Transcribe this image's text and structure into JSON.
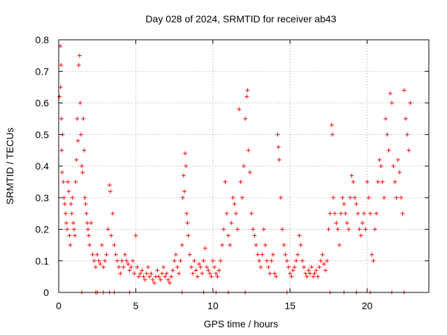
{
  "chart_data": {
    "type": "scatter",
    "title": "Day 028 of 2024, SRMTID for receiver ab43",
    "xlabel": "GPS time / hours",
    "ylabel": "SRMTID / TECUs",
    "xlim": [
      0,
      24
    ],
    "ylim": [
      0,
      0.8
    ],
    "xticks": [
      0,
      5,
      10,
      15,
      20
    ],
    "yticks": [
      0,
      0.1,
      0.2,
      0.3,
      0.4,
      0.5,
      0.6,
      0.7,
      0.8
    ],
    "xtick_labels": [
      "0",
      "5",
      "10",
      "15",
      "20"
    ],
    "ytick_labels": [
      "0",
      "0.1",
      "0.2",
      "0.3",
      "0.4",
      "0.5",
      "0.6",
      "0.7",
      "0.8"
    ],
    "grid": true,
    "marker": "+",
    "color": "#ff0000",
    "series": [
      {
        "name": "SRMTID",
        "points": [
          [
            0.05,
            0.62
          ],
          [
            0.1,
            0.78
          ],
          [
            0.12,
            0.65
          ],
          [
            0.15,
            0.72
          ],
          [
            0.18,
            0.55
          ],
          [
            0.2,
            0.45
          ],
          [
            0.22,
            0.38
          ],
          [
            0.25,
            0.5
          ],
          [
            0.3,
            0.35
          ],
          [
            0.35,
            0.3
          ],
          [
            0.4,
            0.28
          ],
          [
            0.45,
            0.25
          ],
          [
            0.5,
            0.22
          ],
          [
            0.55,
            0.2
          ],
          [
            0.6,
            0.35
          ],
          [
            0.65,
            0.32
          ],
          [
            0.7,
            0.18
          ],
          [
            0.75,
            0.15
          ],
          [
            0.8,
            0.28
          ],
          [
            0.85,
            0.25
          ],
          [
            0.9,
            0.3
          ],
          [
            0.95,
            0.22
          ],
          [
            1.0,
            0.2
          ],
          [
            1.05,
            0.18
          ],
          [
            1.1,
            0.35
          ],
          [
            1.15,
            0.42
          ],
          [
            1.2,
            0.55
          ],
          [
            1.25,
            0.48
          ],
          [
            1.3,
            0.72
          ],
          [
            1.35,
            0.75
          ],
          [
            1.4,
            0.6
          ],
          [
            1.45,
            0.5
          ],
          [
            1.5,
            0.4
          ],
          [
            1.55,
            0.38
          ],
          [
            1.6,
            0.55
          ],
          [
            1.65,
            0.45
          ],
          [
            1.7,
            0.3
          ],
          [
            1.75,
            0.28
          ],
          [
            1.8,
            0.25
          ],
          [
            1.85,
            0.22
          ],
          [
            1.9,
            0.2
          ],
          [
            1.95,
            0.18
          ],
          [
            2.0,
            0.15
          ],
          [
            2.1,
            0.22
          ],
          [
            2.2,
            0.12
          ],
          [
            2.3,
            0.1
          ],
          [
            2.4,
            0.08
          ],
          [
            2.5,
            0.12
          ],
          [
            2.6,
            0.1
          ],
          [
            2.7,
            0.09
          ],
          [
            2.8,
            0.15
          ],
          [
            2.9,
            0.08
          ],
          [
            3.0,
            0.1
          ],
          [
            3.1,
            0.12
          ],
          [
            3.2,
            0.2
          ],
          [
            3.3,
            0.34
          ],
          [
            3.35,
            0.32
          ],
          [
            3.4,
            0.18
          ],
          [
            3.5,
            0.25
          ],
          [
            3.6,
            0.15
          ],
          [
            3.7,
            0.12
          ],
          [
            3.8,
            0.1
          ],
          [
            3.9,
            0.08
          ],
          [
            4.0,
            0.06
          ],
          [
            4.1,
            0.1
          ],
          [
            4.2,
            0.08
          ],
          [
            4.3,
            0.12
          ],
          [
            4.4,
            0.1
          ],
          [
            4.5,
            0.09
          ],
          [
            4.6,
            0.07
          ],
          [
            4.7,
            0.08
          ],
          [
            4.8,
            0.1
          ],
          [
            4.9,
            0.06
          ],
          [
            5.0,
            0.18
          ],
          [
            5.1,
            0.08
          ],
          [
            5.2,
            0.05
          ],
          [
            5.3,
            0.06
          ],
          [
            5.4,
            0.07
          ],
          [
            5.5,
            0.05
          ],
          [
            5.6,
            0.04
          ],
          [
            5.7,
            0.06
          ],
          [
            5.8,
            0.08
          ],
          [
            5.9,
            0.05
          ],
          [
            6.0,
            0.06
          ],
          [
            6.1,
            0.04
          ],
          [
            6.2,
            0.03
          ],
          [
            6.3,
            0.05
          ],
          [
            6.4,
            0.07
          ],
          [
            6.5,
            0.05
          ],
          [
            6.6,
            0.04
          ],
          [
            6.7,
            0.06
          ],
          [
            6.8,
            0.08
          ],
          [
            6.9,
            0.05
          ],
          [
            7.0,
            0.06
          ],
          [
            7.1,
            0.04
          ],
          [
            7.2,
            0.03
          ],
          [
            7.3,
            0.05
          ],
          [
            7.4,
            0.07
          ],
          [
            7.5,
            0.1
          ],
          [
            7.6,
            0.12
          ],
          [
            7.7,
            0.08
          ],
          [
            7.8,
            0.06
          ],
          [
            7.9,
            0.1
          ],
          [
            8.0,
            0.15
          ],
          [
            8.05,
            0.3
          ],
          [
            8.1,
            0.37
          ],
          [
            8.15,
            0.32
          ],
          [
            8.2,
            0.44
          ],
          [
            8.25,
            0.4
          ],
          [
            8.3,
            0.25
          ],
          [
            8.35,
            0.22
          ],
          [
            8.4,
            0.18
          ],
          [
            8.5,
            0.12
          ],
          [
            8.6,
            0.08
          ],
          [
            8.7,
            0.06
          ],
          [
            8.8,
            0.1
          ],
          [
            8.9,
            0.07
          ],
          [
            9.0,
            0.05
          ],
          [
            9.1,
            0.09
          ],
          [
            9.2,
            0.08
          ],
          [
            9.3,
            0.06
          ],
          [
            9.4,
            0.1
          ],
          [
            9.5,
            0.14
          ],
          [
            9.6,
            0.08
          ],
          [
            9.7,
            0.07
          ],
          [
            9.8,
            0.06
          ],
          [
            9.9,
            0.05
          ],
          [
            10.0,
            0.1
          ],
          [
            10.1,
            0.08
          ],
          [
            10.2,
            0.06
          ],
          [
            10.3,
            0.05
          ],
          [
            10.4,
            0.07
          ],
          [
            10.5,
            0.1
          ],
          [
            10.6,
            0.15
          ],
          [
            10.7,
            0.2
          ],
          [
            10.8,
            0.35
          ],
          [
            10.9,
            0.25
          ],
          [
            11.0,
            0.18
          ],
          [
            11.1,
            0.15
          ],
          [
            11.2,
            0.22
          ],
          [
            11.3,
            0.3
          ],
          [
            11.4,
            0.28
          ],
          [
            11.5,
            0.25
          ],
          [
            11.6,
            0.2
          ],
          [
            11.7,
            0.58
          ],
          [
            11.8,
            0.35
          ],
          [
            11.9,
            0.3
          ],
          [
            12.0,
            0.4
          ],
          [
            12.1,
            0.55
          ],
          [
            12.2,
            0.62
          ],
          [
            12.25,
            0.64
          ],
          [
            12.3,
            0.45
          ],
          [
            12.4,
            0.38
          ],
          [
            12.5,
            0.25
          ],
          [
            12.6,
            0.2
          ],
          [
            12.7,
            0.18
          ],
          [
            12.8,
            0.15
          ],
          [
            12.9,
            0.12
          ],
          [
            13.0,
            0.1
          ],
          [
            13.1,
            0.08
          ],
          [
            13.2,
            0.12
          ],
          [
            13.3,
            0.2
          ],
          [
            13.4,
            0.15
          ],
          [
            13.5,
            0.1
          ],
          [
            13.6,
            0.08
          ],
          [
            13.7,
            0.06
          ],
          [
            13.8,
            0.1
          ],
          [
            13.9,
            0.12
          ],
          [
            14.0,
            0.06
          ],
          [
            14.1,
            0.05
          ],
          [
            14.2,
            0.5
          ],
          [
            14.25,
            0.46
          ],
          [
            14.3,
            0.42
          ],
          [
            14.4,
            0.3
          ],
          [
            14.5,
            0.2
          ],
          [
            14.6,
            0.15
          ],
          [
            14.7,
            0.12
          ],
          [
            14.8,
            0.1
          ],
          [
            14.9,
            0.08
          ],
          [
            15.0,
            0.06
          ],
          [
            15.1,
            0.05
          ],
          [
            15.2,
            0.07
          ],
          [
            15.3,
            0.08
          ],
          [
            15.4,
            0.1
          ],
          [
            15.5,
            0.12
          ],
          [
            15.6,
            0.18
          ],
          [
            15.7,
            0.15
          ],
          [
            15.8,
            0.1
          ],
          [
            15.9,
            0.08
          ],
          [
            16.0,
            0.06
          ],
          [
            16.1,
            0.05
          ],
          [
            16.2,
            0.07
          ],
          [
            16.3,
            0.06
          ],
          [
            16.4,
            0.08
          ],
          [
            16.5,
            0.05
          ],
          [
            16.6,
            0.06
          ],
          [
            16.7,
            0.07
          ],
          [
            16.8,
            0.05
          ],
          [
            16.9,
            0.08
          ],
          [
            17.0,
            0.1
          ],
          [
            17.1,
            0.12
          ],
          [
            17.2,
            0.09
          ],
          [
            17.3,
            0.07
          ],
          [
            17.4,
            0.1
          ],
          [
            17.5,
            0.2
          ],
          [
            17.6,
            0.25
          ],
          [
            17.7,
            0.53
          ],
          [
            17.75,
            0.5
          ],
          [
            17.8,
            0.3
          ],
          [
            17.9,
            0.25
          ],
          [
            18.0,
            0.22
          ],
          [
            18.1,
            0.2
          ],
          [
            18.2,
            0.15
          ],
          [
            18.3,
            0.25
          ],
          [
            18.4,
            0.3
          ],
          [
            18.5,
            0.28
          ],
          [
            18.6,
            0.25
          ],
          [
            18.7,
            0.22
          ],
          [
            18.8,
            0.2
          ],
          [
            18.9,
            0.3
          ],
          [
            19.0,
            0.37
          ],
          [
            19.1,
            0.35
          ],
          [
            19.2,
            0.3
          ],
          [
            19.3,
            0.28
          ],
          [
            19.4,
            0.25
          ],
          [
            19.5,
            0.2
          ],
          [
            19.6,
            0.18
          ],
          [
            19.7,
            0.22
          ],
          [
            19.8,
            0.25
          ],
          [
            19.9,
            0.2
          ],
          [
            20.0,
            0.35
          ],
          [
            20.1,
            0.3
          ],
          [
            20.2,
            0.25
          ],
          [
            20.3,
            0.12
          ],
          [
            20.4,
            0.1
          ],
          [
            20.5,
            0.2
          ],
          [
            20.6,
            0.25
          ],
          [
            20.7,
            0.35
          ],
          [
            20.8,
            0.42
          ],
          [
            20.9,
            0.4
          ],
          [
            21.0,
            0.35
          ],
          [
            21.1,
            0.3
          ],
          [
            21.2,
            0.55
          ],
          [
            21.3,
            0.5
          ],
          [
            21.4,
            0.45
          ],
          [
            21.5,
            0.63
          ],
          [
            21.6,
            0.6
          ],
          [
            21.7,
            0.4
          ],
          [
            21.8,
            0.35
          ],
          [
            21.9,
            0.3
          ],
          [
            22.0,
            0.42
          ],
          [
            22.1,
            0.38
          ],
          [
            22.2,
            0.3
          ],
          [
            22.3,
            0.25
          ],
          [
            22.4,
            0.64
          ],
          [
            22.5,
            0.55
          ],
          [
            22.6,
            0.5
          ],
          [
            22.7,
            0.45
          ],
          [
            22.8,
            0.6
          ]
        ]
      }
    ],
    "zero_points_x": [
      1.5,
      2.4,
      2.5,
      2.9,
      3.3,
      3.6,
      4.6,
      8.0,
      9.4,
      10.2,
      11.0,
      12.1,
      14.8,
      17.6,
      18.5,
      19.3,
      20.2,
      21.6,
      22.4
    ]
  }
}
